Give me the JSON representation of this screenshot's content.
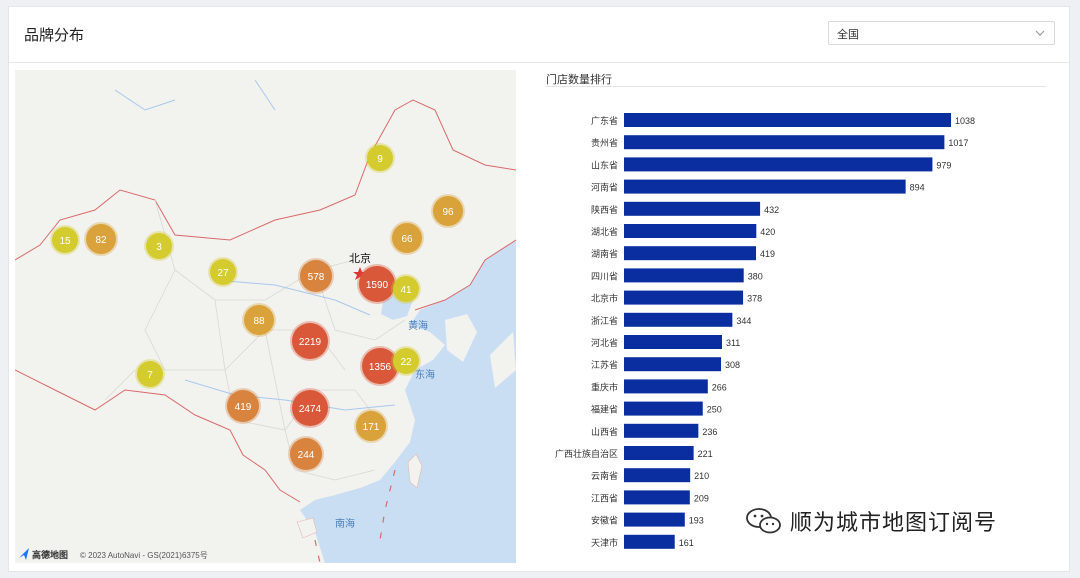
{
  "header": {
    "title": "品牌分布",
    "region_select": {
      "value": "全国",
      "icon": "chevron-down-icon"
    }
  },
  "map": {
    "city_label": "北京",
    "sea_labels": [
      "黄海",
      "东海",
      "南海"
    ],
    "attribution": "© 2023 AutoNavi - GS(2021)6375号",
    "logo_text": "高德地图",
    "clusters": [
      {
        "count": "9",
        "tier": "low"
      },
      {
        "count": "96",
        "tier": "mid"
      },
      {
        "count": "15",
        "tier": "low"
      },
      {
        "count": "82",
        "tier": "mid"
      },
      {
        "count": "3",
        "tier": "low"
      },
      {
        "count": "66",
        "tier": "mid"
      },
      {
        "count": "27",
        "tier": "low"
      },
      {
        "count": "578",
        "tier": "high"
      },
      {
        "count": "1590",
        "tier": "top"
      },
      {
        "count": "41",
        "tier": "low"
      },
      {
        "count": "88",
        "tier": "mid"
      },
      {
        "count": "2219",
        "tier": "top"
      },
      {
        "count": "1356",
        "tier": "top"
      },
      {
        "count": "22",
        "tier": "low"
      },
      {
        "count": "7",
        "tier": "low"
      },
      {
        "count": "419",
        "tier": "high"
      },
      {
        "count": "2474",
        "tier": "top"
      },
      {
        "count": "171",
        "tier": "mid"
      },
      {
        "count": "244",
        "tier": "high"
      }
    ],
    "colors": {
      "low": "#d4cc2e",
      "mid": "#d9a23a",
      "high": "#d8843e",
      "top": "#d9583a",
      "water": "#c9def3",
      "land": "#f2f2ef"
    }
  },
  "ranking": {
    "title": "门店数量排行",
    "bar_color": "#0a2ea0"
  },
  "chart_data": {
    "type": "bar",
    "orientation": "horizontal",
    "title": "门店数量排行",
    "categories": [
      "广东省",
      "贵州省",
      "山东省",
      "河南省",
      "陕西省",
      "湖北省",
      "湖南省",
      "四川省",
      "北京市",
      "浙江省",
      "河北省",
      "江苏省",
      "重庆市",
      "福建省",
      "山西省",
      "广西壮族自治区",
      "云南省",
      "江西省",
      "安徽省",
      "天津市"
    ],
    "values": [
      1038,
      1017,
      979,
      894,
      432,
      420,
      419,
      380,
      378,
      344,
      311,
      308,
      266,
      250,
      236,
      221,
      210,
      209,
      193,
      161
    ],
    "xlim": [
      0,
      1100
    ]
  },
  "watermark": {
    "text": "顺为城市地图订阅号",
    "icon": "wechat-icon"
  }
}
